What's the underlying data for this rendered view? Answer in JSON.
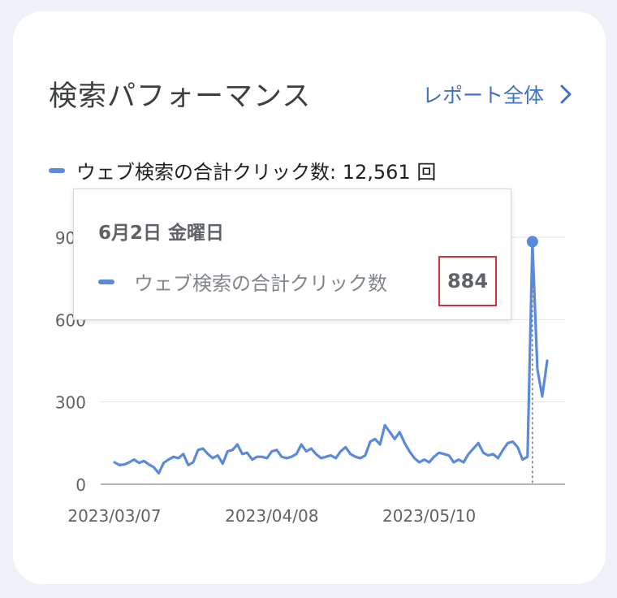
{
  "card": {
    "title": "検索パフォーマンス",
    "report_link": "レポート全体"
  },
  "legend": {
    "label": "ウェブ検索の合計クリック数: 12,561 回"
  },
  "tooltip": {
    "date": "6月2日 金曜日",
    "series_label": "ウェブ検索の合計クリック数",
    "value": "884"
  },
  "colors": {
    "series": "#5b8ad9",
    "link": "#3f72c4",
    "highlight_box": "#d0343a"
  },
  "chart_data": {
    "type": "line",
    "series": [
      {
        "name": "ウェブ検索の合計クリック数",
        "values": [
          80,
          70,
          72,
          80,
          90,
          78,
          85,
          72,
          62,
          40,
          78,
          90,
          100,
          95,
          110,
          70,
          80,
          125,
          130,
          110,
          95,
          105,
          75,
          120,
          125,
          145,
          110,
          115,
          90,
          100,
          100,
          95,
          120,
          125,
          100,
          95,
          100,
          110,
          145,
          120,
          130,
          110,
          95,
          100,
          105,
          95,
          120,
          135,
          110,
          100,
          95,
          105,
          155,
          165,
          145,
          215,
          190,
          165,
          190,
          150,
          120,
          95,
          80,
          90,
          80,
          100,
          115,
          110,
          105,
          80,
          90,
          80,
          110,
          130,
          150,
          115,
          105,
          110,
          95,
          125,
          150,
          155,
          135,
          90,
          100,
          884,
          420,
          320,
          450
        ]
      }
    ],
    "x_tick_labels": [
      "2023/03/07",
      "2023/04/08",
      "2023/05/10"
    ],
    "y_tick_labels": [
      "0",
      "300",
      "600",
      "900"
    ],
    "ylim": [
      0,
      900
    ],
    "grid": true,
    "highlighted_point": {
      "date": "6月2日 金曜日",
      "value": 884
    }
  }
}
